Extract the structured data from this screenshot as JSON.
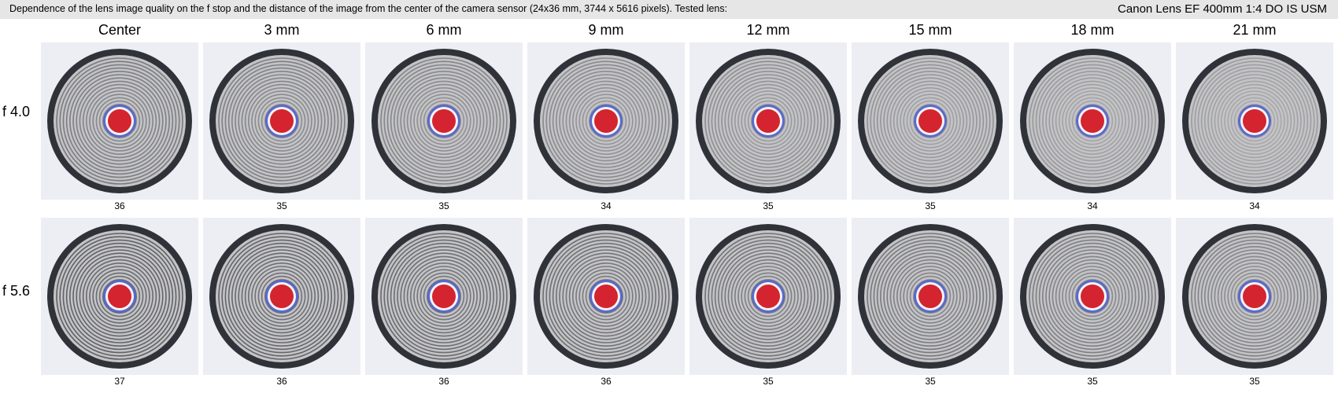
{
  "header": {
    "description": "Dependence of the lens image quality on the f stop and the distance of the image from the center of the camera sensor (24x36 mm, 3744 x 5616 pixels).  Tested lens:",
    "lens": "Canon Lens EF 400mm 1:4 DO IS USM"
  },
  "columns": [
    "Center",
    "3 mm",
    "6 mm",
    "9 mm",
    "12 mm",
    "15 mm",
    "18 mm",
    "21 mm"
  ],
  "rows": [
    {
      "label": "f 4.0",
      "scores": [
        "36",
        "35",
        "35",
        "34",
        "35",
        "35",
        "34",
        "34"
      ]
    },
    {
      "label": "f 5.6",
      "scores": [
        "37",
        "36",
        "36",
        "36",
        "35",
        "35",
        "35",
        "35"
      ]
    }
  ],
  "colors": {
    "header_bg": "#e6e6e6",
    "tile_bg": "#edeef3",
    "target_bg": "#c4c4c6",
    "ring_dark": "#2f3238",
    "center_red": "#d4242f",
    "inner_blue": "#4a5cc8"
  }
}
